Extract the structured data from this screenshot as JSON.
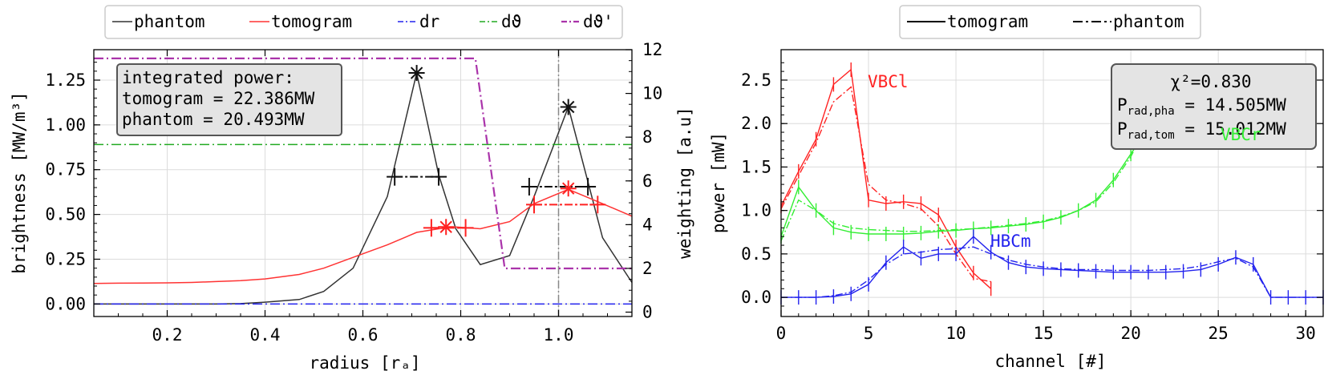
{
  "left": {
    "legend": [
      {
        "label": "phantom",
        "color": "#333333",
        "dash": "solid"
      },
      {
        "label": "tomogram",
        "color": "#ff3333",
        "dash": "solid"
      },
      {
        "label": "dr",
        "color": "#2222ee",
        "dash": "dashdot"
      },
      {
        "label": "dϑ",
        "color": "#22aa22",
        "dash": "dashdot"
      },
      {
        "label": "dϑ'",
        "color": "#aa33aa",
        "dash": "dashdot"
      }
    ],
    "xlabel": "radius [rₐ]",
    "ylabel": "brightness [MW/m³]",
    "y2label": "weighting [a.u]",
    "info": {
      "line1": "integrated power:",
      "line2": "tomogram = 22.386MW",
      "line3": "phantom = 20.493MW"
    }
  },
  "right": {
    "legend": [
      {
        "label": "tomogram",
        "color": "#000000",
        "dash": "solid"
      },
      {
        "label": "phantom",
        "color": "#000000",
        "dash": "dashdot"
      }
    ],
    "xlabel": "channel [#]",
    "ylabel": "power [mW]",
    "info": {
      "chi": "χ²=0.830",
      "pha": "P_rad,pha = 14.505MW",
      "tom": "P_rad,tom = 15.012MW"
    },
    "camera_labels": [
      {
        "text": "VBCl",
        "color": "#ff2222"
      },
      {
        "text": "VBCr",
        "color": "#33ee33"
      },
      {
        "text": "HBCm",
        "color": "#2222ee"
      }
    ]
  },
  "chart_data": [
    {
      "type": "line",
      "xlim": [
        0.05,
        1.15
      ],
      "ylim": [
        -0.07,
        1.42
      ],
      "y2lim": [
        -0.2,
        12.0
      ],
      "xticks": [
        0.2,
        0.4,
        0.6,
        0.8,
        1.0
      ],
      "yticks": [
        0.0,
        0.25,
        0.5,
        0.75,
        1.0,
        1.25
      ],
      "y2ticks": [
        0,
        2,
        4,
        6,
        8,
        10,
        12
      ],
      "grid": true,
      "vline_x": 1.0,
      "series": [
        {
          "name": "phantom",
          "color": "#333333",
          "x": [
            0.05,
            0.1,
            0.15,
            0.2,
            0.25,
            0.3,
            0.35,
            0.4,
            0.47,
            0.52,
            0.58,
            0.65,
            0.71,
            0.755,
            0.79,
            0.84,
            0.9,
            0.95,
            1.02,
            1.09,
            1.15
          ],
          "y": [
            0.0,
            0.0,
            0.0,
            0.0,
            0.0,
            0.0,
            0.002,
            0.01,
            0.025,
            0.07,
            0.2,
            0.6,
            1.29,
            0.72,
            0.42,
            0.22,
            0.27,
            0.6,
            1.1,
            0.37,
            0.12
          ]
        },
        {
          "name": "tomogram",
          "color": "#ff3333",
          "x": [
            0.05,
            0.1,
            0.15,
            0.2,
            0.25,
            0.3,
            0.35,
            0.4,
            0.47,
            0.52,
            0.58,
            0.65,
            0.71,
            0.755,
            0.79,
            0.84,
            0.9,
            0.95,
            1.02,
            1.09,
            1.15
          ],
          "y": [
            0.115,
            0.116,
            0.117,
            0.118,
            0.12,
            0.125,
            0.13,
            0.14,
            0.165,
            0.2,
            0.26,
            0.33,
            0.4,
            0.42,
            0.43,
            0.42,
            0.46,
            0.56,
            0.64,
            0.56,
            0.49
          ]
        },
        {
          "name": "dr",
          "color": "#2222ee",
          "axis": "y",
          "x": [
            0.05,
            1.15
          ],
          "y": [
            0.0,
            0.0
          ]
        },
        {
          "name": "dϑ",
          "color": "#22aa22",
          "axis": "y",
          "x": [
            0.05,
            1.15
          ],
          "y": [
            0.89,
            0.89
          ]
        },
        {
          "name": "dϑ'",
          "color": "#aa33aa",
          "axis": "y2",
          "x": [
            0.05,
            0.83,
            0.89,
            1.15
          ],
          "y": [
            11.6,
            11.6,
            2.0,
            2.0
          ]
        }
      ],
      "markers": [
        {
          "x": 0.71,
          "y": 1.29,
          "color": "#111111"
        },
        {
          "x": 1.02,
          "y": 1.1,
          "color": "#111111"
        },
        {
          "x": 0.77,
          "y": 0.43,
          "color": "#ff2222"
        },
        {
          "x": 1.02,
          "y": 0.645,
          "color": "#ff2222"
        }
      ],
      "errorbars": [
        {
          "x1": 0.665,
          "x2": 0.755,
          "y": 0.71,
          "color": "#111111"
        },
        {
          "x1": 0.94,
          "x2": 1.06,
          "y": 0.655,
          "color": "#111111"
        },
        {
          "x1": 0.74,
          "x2": 0.81,
          "y": 0.425,
          "color": "#ff2222"
        },
        {
          "x1": 0.95,
          "x2": 1.08,
          "y": 0.555,
          "color": "#ff2222"
        }
      ]
    },
    {
      "type": "line",
      "xlim": [
        0,
        31
      ],
      "ylim": [
        -0.22,
        2.85
      ],
      "xticks": [
        0,
        5,
        10,
        15,
        20,
        25,
        30
      ],
      "yticks": [
        0.0,
        0.5,
        1.0,
        1.5,
        2.0,
        2.5
      ],
      "grid": true,
      "series": [
        {
          "name": "VBCl tomogram",
          "color": "#ff2222",
          "x": [
            0,
            1,
            2,
            3,
            4,
            5,
            6,
            7,
            8,
            9,
            10,
            11,
            12
          ],
          "y": [
            1.05,
            1.45,
            1.82,
            2.45,
            2.62,
            1.12,
            1.08,
            1.1,
            1.08,
            0.95,
            0.58,
            0.28,
            0.1
          ]
        },
        {
          "name": "VBCl phantom",
          "color": "#ff2222",
          "x": [
            0,
            1,
            2,
            3,
            4,
            5,
            6,
            7,
            8,
            9,
            10,
            11,
            12
          ],
          "y": [
            1.02,
            1.4,
            1.78,
            2.25,
            2.42,
            1.3,
            1.12,
            1.08,
            1.02,
            0.82,
            0.5,
            0.22,
            0.18
          ]
        },
        {
          "name": "VBCr tomogram",
          "color": "#33ee33",
          "x": [
            0,
            1,
            2,
            3,
            4,
            5,
            6,
            7,
            8,
            9,
            10,
            11,
            12,
            13,
            14,
            15,
            16,
            17,
            18,
            19,
            20,
            21
          ],
          "y": [
            0.7,
            1.27,
            1.0,
            0.8,
            0.75,
            0.73,
            0.73,
            0.73,
            0.74,
            0.76,
            0.77,
            0.79,
            0.8,
            0.82,
            0.84,
            0.87,
            0.92,
            1.0,
            1.12,
            1.35,
            1.65,
            1.95
          ]
        },
        {
          "name": "VBCr phantom",
          "color": "#33ee33",
          "x": [
            0,
            1,
            2,
            3,
            4,
            5,
            6,
            7,
            8,
            9,
            10,
            11,
            12,
            13,
            14,
            15,
            16,
            17,
            18,
            19,
            20,
            21
          ],
          "y": [
            0.65,
            1.12,
            1.0,
            0.85,
            0.8,
            0.78,
            0.77,
            0.76,
            0.76,
            0.77,
            0.78,
            0.79,
            0.81,
            0.83,
            0.85,
            0.88,
            0.93,
            1.0,
            1.1,
            1.32,
            1.62,
            2.0
          ]
        },
        {
          "name": "HBCm tomogram",
          "color": "#2222ee",
          "x": [
            0,
            1,
            2,
            3,
            4,
            5,
            6,
            7,
            8,
            9,
            10,
            11,
            12,
            13,
            14,
            15,
            16,
            17,
            18,
            19,
            20,
            21,
            22,
            23,
            24,
            25,
            26,
            27,
            28,
            29,
            30,
            31
          ],
          "y": [
            0.0,
            0.0,
            0.0,
            0.01,
            0.04,
            0.15,
            0.4,
            0.58,
            0.45,
            0.5,
            0.5,
            0.7,
            0.52,
            0.4,
            0.35,
            0.33,
            0.32,
            0.31,
            0.3,
            0.29,
            0.29,
            0.29,
            0.29,
            0.3,
            0.32,
            0.38,
            0.46,
            0.38,
            0.0,
            0.0,
            0.0,
            0.0
          ]
        },
        {
          "name": "HBCm phantom",
          "color": "#2222ee",
          "x": [
            0,
            1,
            2,
            3,
            4,
            5,
            6,
            7,
            8,
            9,
            10,
            11,
            12,
            13,
            14,
            15,
            16,
            17,
            18,
            19,
            20,
            21,
            22,
            23,
            24,
            25,
            26,
            27,
            28,
            29,
            30,
            31
          ],
          "y": [
            0.0,
            0.0,
            0.0,
            0.02,
            0.06,
            0.2,
            0.38,
            0.5,
            0.52,
            0.55,
            0.56,
            0.58,
            0.5,
            0.43,
            0.38,
            0.35,
            0.33,
            0.32,
            0.32,
            0.31,
            0.31,
            0.31,
            0.32,
            0.33,
            0.36,
            0.41,
            0.45,
            0.35,
            0.0,
            0.0,
            0.0,
            0.0
          ]
        }
      ]
    }
  ]
}
